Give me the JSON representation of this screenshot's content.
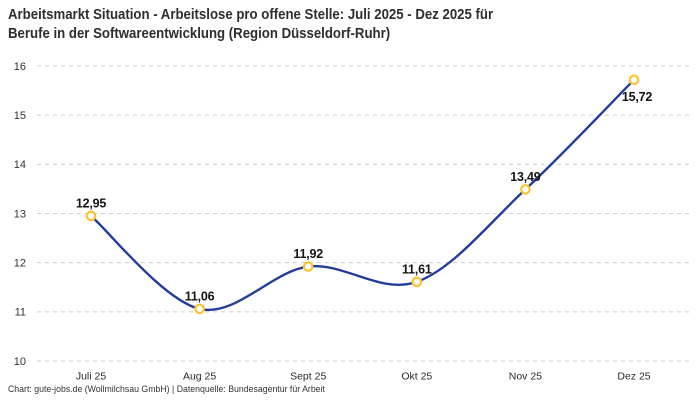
{
  "header": {
    "title_line1": "Arbeitsmarkt Situation - Arbeitslose pro offene Stelle: Juli 2025 - Dez 2025 für",
    "title_line2": "Berufe in der Softwareentwicklung (Region Düsseldorf-Ruhr)"
  },
  "chart_data": {
    "type": "line",
    "title": "Arbeitsmarkt Situation - Arbeitslose pro offene Stelle: Juli 2025 - Dez 2025 für Berufe in der Softwareentwicklung (Region Düsseldorf-Ruhr)",
    "categories": [
      "Juli 25",
      "Aug 25",
      "Sept 25",
      "Okt 25",
      "Nov 25",
      "Dez 25"
    ],
    "values": [
      12.95,
      11.06,
      11.92,
      11.61,
      13.49,
      15.72
    ],
    "point_labels": [
      "12,95",
      "11,06",
      "11,92",
      "11,61",
      "13,49",
      "15,72"
    ],
    "label_positions": [
      "above",
      "above",
      "above",
      "above",
      "above",
      "below"
    ],
    "xlabel": "",
    "ylabel": "",
    "ylim": [
      10,
      16
    ],
    "yticks": [
      10,
      11,
      12,
      13,
      14,
      15,
      16
    ],
    "grid": "horizontal-dashed",
    "legend": "none",
    "curve": "smooth",
    "colors": {
      "line": "#233d9b",
      "marker_ring": "#fcc432",
      "marker_fill": "#ffffff",
      "grid": "#cccccc",
      "y_tick_label": "#333333",
      "x_tick_label": "#2b2b2b",
      "data_label": "#141414"
    }
  },
  "footer": {
    "credit": "Chart: gute-jobs.de (Wollmilchsau GmbH) | Datenquelle: Bundesagentur für Arbeit"
  }
}
